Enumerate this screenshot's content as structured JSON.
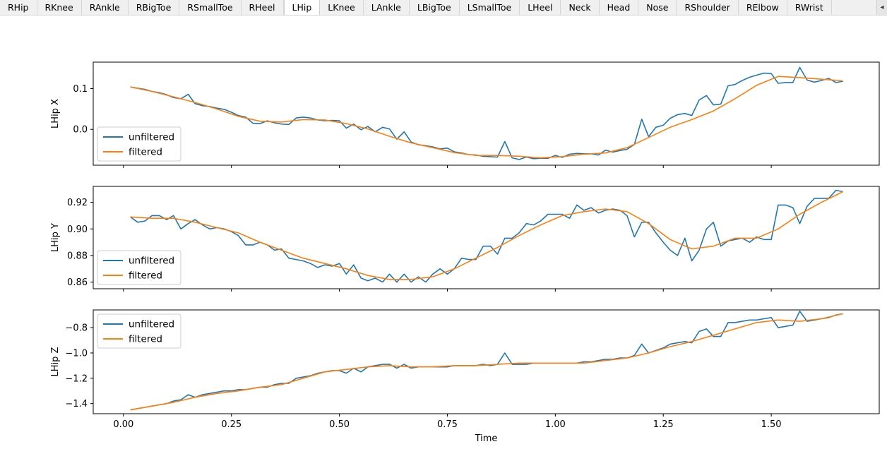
{
  "tabs": [
    {
      "label": "RHip"
    },
    {
      "label": "RKnee"
    },
    {
      "label": "RAnkle"
    },
    {
      "label": "RBigToe"
    },
    {
      "label": "RSmallToe"
    },
    {
      "label": "RHeel"
    },
    {
      "label": "LHip"
    },
    {
      "label": "LKnee"
    },
    {
      "label": "LAnkle"
    },
    {
      "label": "LBigToe"
    },
    {
      "label": "LSmallToe"
    },
    {
      "label": "LHeel"
    },
    {
      "label": "Neck"
    },
    {
      "label": "Head"
    },
    {
      "label": "Nose"
    },
    {
      "label": "RShoulder"
    },
    {
      "label": "RElbow"
    },
    {
      "label": "RWrist"
    }
  ],
  "active_tab": "LHip",
  "colors": {
    "unfiltered": "#1f77b4",
    "filtered": "#ff7f0e"
  },
  "chart_data": [
    {
      "type": "line",
      "ylabel": "LHip X",
      "xlabel": "",
      "xlim": [
        -0.07,
        1.75
      ],
      "ylim": [
        -0.088,
        0.165
      ],
      "yticks": [
        0.0,
        0.1
      ],
      "ytick_labels": [
        "0.0",
        "0.1"
      ],
      "legend": [
        "unfiltered",
        "filtered"
      ],
      "legend_position": "lower-left",
      "series": [
        {
          "name": "unfiltered",
          "x": [
            0.016,
            0.033,
            0.05,
            0.066,
            0.083,
            0.1,
            0.116,
            0.133,
            0.15,
            0.166,
            0.183,
            0.2,
            0.216,
            0.233,
            0.25,
            0.266,
            0.283,
            0.3,
            0.316,
            0.333,
            0.35,
            0.366,
            0.383,
            0.4,
            0.416,
            0.433,
            0.45,
            0.466,
            0.483,
            0.5,
            0.516,
            0.533,
            0.55,
            0.566,
            0.583,
            0.6,
            0.616,
            0.633,
            0.65,
            0.666,
            0.683,
            0.7,
            0.716,
            0.733,
            0.75,
            0.766,
            0.783,
            0.8,
            0.816,
            0.833,
            0.85,
            0.866,
            0.883,
            0.9,
            0.916,
            0.933,
            0.95,
            0.966,
            0.983,
            1.0,
            1.016,
            1.033,
            1.05,
            1.066,
            1.083,
            1.1,
            1.116,
            1.133,
            1.15,
            1.166,
            1.183,
            1.2,
            1.216,
            1.233,
            1.25,
            1.266,
            1.283,
            1.3,
            1.316,
            1.333,
            1.35,
            1.366,
            1.383,
            1.4,
            1.416,
            1.433,
            1.45,
            1.466,
            1.483,
            1.5,
            1.516,
            1.533,
            1.55,
            1.566,
            1.583,
            1.6,
            1.616,
            1.633,
            1.65,
            1.666
          ],
          "y": [
            0.104,
            0.101,
            0.098,
            0.093,
            0.09,
            0.085,
            0.078,
            0.075,
            0.086,
            0.063,
            0.058,
            0.056,
            0.052,
            0.049,
            0.042,
            0.034,
            0.03,
            0.015,
            0.014,
            0.021,
            0.016,
            0.013,
            0.012,
            0.028,
            0.03,
            0.028,
            0.023,
            0.021,
            0.022,
            0.021,
            0.003,
            0.013,
            -0.001,
            0.007,
            -0.006,
            0.005,
            0.001,
            -0.024,
            -0.006,
            -0.031,
            -0.038,
            -0.04,
            -0.043,
            -0.048,
            -0.046,
            -0.055,
            -0.058,
            -0.062,
            -0.063,
            -0.066,
            -0.067,
            -0.068,
            -0.03,
            -0.07,
            -0.074,
            -0.068,
            -0.072,
            -0.071,
            -0.071,
            -0.064,
            -0.069,
            -0.061,
            -0.059,
            -0.06,
            -0.06,
            -0.063,
            -0.051,
            -0.056,
            -0.052,
            -0.049,
            -0.037,
            0.025,
            -0.018,
            0.005,
            0.01,
            0.027,
            0.036,
            0.039,
            0.034,
            0.072,
            0.083,
            0.06,
            0.062,
            0.107,
            0.11,
            0.12,
            0.128,
            0.133,
            0.138,
            0.137,
            0.113,
            0.115,
            0.115,
            0.152,
            0.121,
            0.116,
            0.12,
            0.125,
            0.115,
            0.118
          ]
        },
        {
          "name": "filtered",
          "x": [
            0.016,
            0.066,
            0.116,
            0.166,
            0.216,
            0.266,
            0.316,
            0.366,
            0.416,
            0.466,
            0.516,
            0.566,
            0.616,
            0.666,
            0.716,
            0.766,
            0.816,
            0.866,
            0.916,
            0.966,
            1.016,
            1.066,
            1.116,
            1.166,
            1.216,
            1.266,
            1.316,
            1.366,
            1.416,
            1.466,
            1.516,
            1.566,
            1.616,
            1.666
          ],
          "y": [
            0.104,
            0.093,
            0.08,
            0.066,
            0.05,
            0.032,
            0.02,
            0.018,
            0.024,
            0.023,
            0.014,
            0.001,
            -0.017,
            -0.033,
            -0.045,
            -0.057,
            -0.064,
            -0.064,
            -0.066,
            -0.07,
            -0.067,
            -0.061,
            -0.058,
            -0.045,
            -0.02,
            0.005,
            0.024,
            0.045,
            0.075,
            0.108,
            0.13,
            0.127,
            0.123,
            0.119
          ]
        }
      ]
    },
    {
      "type": "line",
      "ylabel": "LHip Y",
      "xlabel": "",
      "xlim": [
        -0.07,
        1.75
      ],
      "ylim": [
        0.855,
        0.932
      ],
      "yticks": [
        0.86,
        0.88,
        0.9,
        0.92
      ],
      "ytick_labels": [
        "0.86",
        "0.88",
        "0.90",
        "0.92"
      ],
      "legend": [
        "unfiltered",
        "filtered"
      ],
      "legend_position": "lower-left",
      "series": [
        {
          "name": "unfiltered",
          "x": [
            0.016,
            0.033,
            0.05,
            0.066,
            0.083,
            0.1,
            0.116,
            0.133,
            0.15,
            0.166,
            0.183,
            0.2,
            0.216,
            0.233,
            0.25,
            0.266,
            0.283,
            0.3,
            0.316,
            0.333,
            0.35,
            0.366,
            0.383,
            0.4,
            0.416,
            0.433,
            0.45,
            0.466,
            0.483,
            0.5,
            0.516,
            0.533,
            0.55,
            0.566,
            0.583,
            0.6,
            0.616,
            0.633,
            0.65,
            0.666,
            0.683,
            0.7,
            0.716,
            0.733,
            0.75,
            0.766,
            0.783,
            0.8,
            0.816,
            0.833,
            0.85,
            0.866,
            0.883,
            0.9,
            0.916,
            0.933,
            0.95,
            0.966,
            0.983,
            1.0,
            1.016,
            1.033,
            1.05,
            1.066,
            1.083,
            1.1,
            1.116,
            1.133,
            1.15,
            1.166,
            1.183,
            1.2,
            1.216,
            1.233,
            1.25,
            1.266,
            1.283,
            1.3,
            1.316,
            1.333,
            1.35,
            1.366,
            1.383,
            1.4,
            1.416,
            1.433,
            1.45,
            1.466,
            1.483,
            1.5,
            1.516,
            1.533,
            1.55,
            1.566,
            1.583,
            1.6,
            1.616,
            1.633,
            1.65,
            1.666
          ],
          "y": [
            0.909,
            0.905,
            0.906,
            0.91,
            0.91,
            0.907,
            0.91,
            0.9,
            0.904,
            0.907,
            0.903,
            0.9,
            0.901,
            0.9,
            0.898,
            0.895,
            0.888,
            0.888,
            0.89,
            0.888,
            0.884,
            0.885,
            0.878,
            0.877,
            0.876,
            0.874,
            0.871,
            0.873,
            0.872,
            0.874,
            0.866,
            0.873,
            0.863,
            0.861,
            0.863,
            0.86,
            0.866,
            0.86,
            0.866,
            0.86,
            0.864,
            0.86,
            0.866,
            0.87,
            0.866,
            0.87,
            0.878,
            0.877,
            0.877,
            0.887,
            0.887,
            0.881,
            0.893,
            0.893,
            0.897,
            0.904,
            0.903,
            0.906,
            0.911,
            0.911,
            0.911,
            0.908,
            0.918,
            0.914,
            0.916,
            0.912,
            0.914,
            0.915,
            0.914,
            0.91,
            0.894,
            0.905,
            0.905,
            0.897,
            0.89,
            0.884,
            0.88,
            0.893,
            0.876,
            0.884,
            0.9,
            0.905,
            0.887,
            0.891,
            0.892,
            0.893,
            0.89,
            0.894,
            0.892,
            0.892,
            0.918,
            0.918,
            0.916,
            0.904,
            0.917,
            0.923,
            0.923,
            0.923,
            0.929,
            0.928
          ]
        },
        {
          "name": "filtered",
          "x": [
            0.016,
            0.066,
            0.116,
            0.166,
            0.216,
            0.266,
            0.316,
            0.366,
            0.416,
            0.466,
            0.516,
            0.566,
            0.616,
            0.666,
            0.716,
            0.766,
            0.816,
            0.866,
            0.916,
            0.966,
            1.016,
            1.066,
            1.116,
            1.166,
            1.216,
            1.266,
            1.316,
            1.366,
            1.416,
            1.466,
            1.516,
            1.566,
            1.616,
            1.666
          ],
          "y": [
            0.909,
            0.908,
            0.908,
            0.905,
            0.901,
            0.897,
            0.89,
            0.884,
            0.878,
            0.874,
            0.87,
            0.865,
            0.862,
            0.862,
            0.864,
            0.87,
            0.878,
            0.886,
            0.895,
            0.903,
            0.91,
            0.913,
            0.915,
            0.913,
            0.904,
            0.892,
            0.885,
            0.887,
            0.893,
            0.893,
            0.9,
            0.911,
            0.92,
            0.928
          ]
        }
      ]
    },
    {
      "type": "line",
      "ylabel": "LHip Z",
      "xlabel": "Time",
      "xlim": [
        -0.07,
        1.75
      ],
      "ylim": [
        -1.48,
        -0.66
      ],
      "yticks": [
        -1.4,
        -1.2,
        -1.0,
        -0.8
      ],
      "ytick_labels": [
        "−1.4",
        "−1.2",
        "−1.0",
        "−0.8"
      ],
      "xticks": [
        0.0,
        0.25,
        0.5,
        0.75,
        1.0,
        1.25,
        1.5
      ],
      "xtick_labels": [
        "0.00",
        "0.25",
        "0.50",
        "0.75",
        "1.00",
        "1.25",
        "1.50"
      ],
      "legend": [
        "unfiltered",
        "filtered"
      ],
      "legend_position": "upper-left",
      "series": [
        {
          "name": "unfiltered",
          "x": [
            0.016,
            0.033,
            0.05,
            0.066,
            0.083,
            0.1,
            0.116,
            0.133,
            0.15,
            0.166,
            0.183,
            0.2,
            0.216,
            0.233,
            0.25,
            0.266,
            0.283,
            0.3,
            0.316,
            0.333,
            0.35,
            0.366,
            0.383,
            0.4,
            0.416,
            0.433,
            0.45,
            0.466,
            0.483,
            0.5,
            0.516,
            0.533,
            0.55,
            0.566,
            0.583,
            0.6,
            0.616,
            0.633,
            0.65,
            0.666,
            0.683,
            0.7,
            0.716,
            0.733,
            0.75,
            0.766,
            0.783,
            0.8,
            0.816,
            0.833,
            0.85,
            0.866,
            0.883,
            0.9,
            0.916,
            0.933,
            0.95,
            0.966,
            0.983,
            1.0,
            1.016,
            1.033,
            1.05,
            1.066,
            1.083,
            1.1,
            1.116,
            1.133,
            1.15,
            1.166,
            1.183,
            1.2,
            1.216,
            1.233,
            1.25,
            1.266,
            1.283,
            1.3,
            1.316,
            1.333,
            1.35,
            1.366,
            1.383,
            1.4,
            1.416,
            1.433,
            1.45,
            1.466,
            1.483,
            1.5,
            1.516,
            1.533,
            1.55,
            1.566,
            1.583,
            1.6,
            1.616,
            1.633,
            1.65,
            1.666
          ],
          "y": [
            -1.45,
            -1.44,
            -1.43,
            -1.42,
            -1.41,
            -1.4,
            -1.38,
            -1.37,
            -1.33,
            -1.35,
            -1.33,
            -1.32,
            -1.31,
            -1.3,
            -1.3,
            -1.29,
            -1.29,
            -1.28,
            -1.27,
            -1.27,
            -1.25,
            -1.24,
            -1.24,
            -1.2,
            -1.19,
            -1.18,
            -1.16,
            -1.15,
            -1.14,
            -1.14,
            -1.16,
            -1.12,
            -1.15,
            -1.11,
            -1.1,
            -1.09,
            -1.09,
            -1.12,
            -1.09,
            -1.12,
            -1.11,
            -1.11,
            -1.11,
            -1.11,
            -1.11,
            -1.1,
            -1.1,
            -1.1,
            -1.1,
            -1.09,
            -1.1,
            -1.09,
            -1.0,
            -1.09,
            -1.09,
            -1.09,
            -1.08,
            -1.08,
            -1.08,
            -1.08,
            -1.08,
            -1.08,
            -1.08,
            -1.07,
            -1.07,
            -1.06,
            -1.05,
            -1.05,
            -1.04,
            -1.04,
            -1.02,
            -0.93,
            -1.0,
            -0.98,
            -0.96,
            -0.93,
            -0.92,
            -0.91,
            -0.92,
            -0.83,
            -0.81,
            -0.87,
            -0.87,
            -0.76,
            -0.76,
            -0.75,
            -0.74,
            -0.74,
            -0.73,
            -0.72,
            -0.8,
            -0.79,
            -0.78,
            -0.67,
            -0.75,
            -0.74,
            -0.73,
            -0.72,
            -0.7,
            -0.69
          ]
        },
        {
          "name": "filtered",
          "x": [
            0.016,
            0.066,
            0.116,
            0.166,
            0.216,
            0.266,
            0.316,
            0.366,
            0.416,
            0.466,
            0.516,
            0.566,
            0.616,
            0.666,
            0.716,
            0.766,
            0.816,
            0.866,
            0.916,
            0.966,
            1.016,
            1.066,
            1.116,
            1.166,
            1.216,
            1.266,
            1.316,
            1.366,
            1.416,
            1.466,
            1.516,
            1.566,
            1.616,
            1.666
          ],
          "y": [
            -1.45,
            -1.42,
            -1.39,
            -1.35,
            -1.32,
            -1.3,
            -1.27,
            -1.25,
            -1.2,
            -1.15,
            -1.13,
            -1.11,
            -1.1,
            -1.11,
            -1.11,
            -1.1,
            -1.1,
            -1.09,
            -1.08,
            -1.08,
            -1.08,
            -1.08,
            -1.06,
            -1.04,
            -1.0,
            -0.95,
            -0.91,
            -0.86,
            -0.81,
            -0.76,
            -0.74,
            -0.75,
            -0.73,
            -0.69
          ]
        }
      ]
    }
  ]
}
